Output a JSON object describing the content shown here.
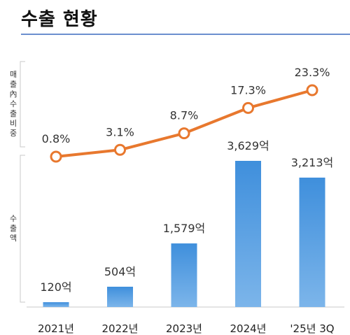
{
  "title": "수출 현황",
  "chart_data": {
    "type": "bar",
    "categories": [
      "2021년",
      "2022년",
      "2023년",
      "2024년",
      "'25년 3Q"
    ],
    "series": [
      {
        "type": "bar",
        "values": [
          120,
          504,
          1579,
          3629,
          3213
        ],
        "labels": [
          "120억",
          "504억",
          "1,579억",
          "3,629억",
          "3,213억"
        ],
        "color": "#3f8fdc"
      },
      {
        "type": "line",
        "values": [
          0.8,
          3.1,
          8.7,
          17.3,
          23.3
        ],
        "labels": [
          "0.8%",
          "3.1%",
          "8.7%",
          "17.3%",
          "23.3%"
        ],
        "color": "#e8782e"
      }
    ],
    "axis_labels": {
      "line": "매출內수출비중",
      "bar": "수출액"
    },
    "grid": false,
    "legend": "none"
  }
}
